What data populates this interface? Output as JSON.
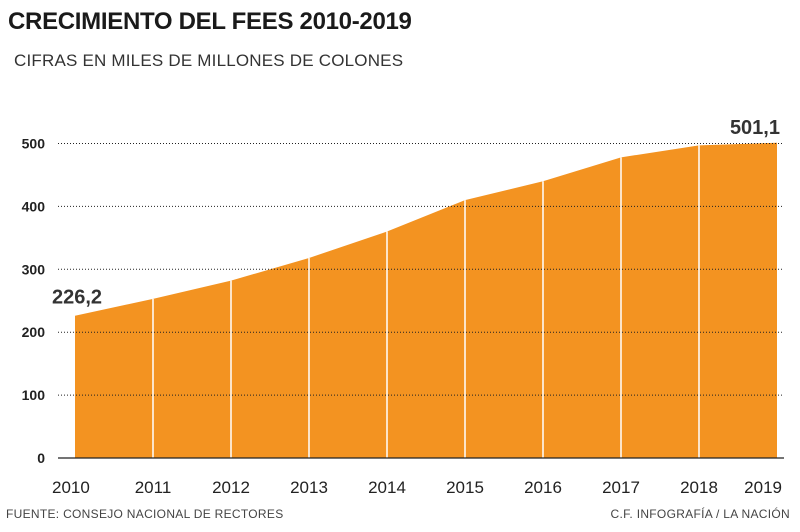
{
  "header": {
    "title": "CRECIMIENTO DEL FEES 2010-2019",
    "subtitle": "CIFRAS EN MILES DE MILLONES DE COLONES"
  },
  "footer": {
    "source": "FUENTE: CONSEJO NACIONAL DE RECTORES",
    "credit": "C.F. INFOGRAFÍA / LA NACIÓN"
  },
  "colors": {
    "area": "#f39321",
    "grid": "#222222",
    "separator": "#ffffff",
    "text": "#222222"
  },
  "chart_data": {
    "type": "area",
    "title": "CRECIMIENTO DEL FEES 2010-2019",
    "subtitle": "CIFRAS EN MILES DE MILLONES DE COLONES",
    "xlabel": "",
    "ylabel": "",
    "categories": [
      "2010",
      "2011",
      "2012",
      "2013",
      "2014",
      "2015",
      "2016",
      "2017",
      "2018",
      "2019"
    ],
    "values": [
      226.2,
      253,
      282,
      318,
      360,
      410,
      440,
      478,
      497,
      501.1
    ],
    "ylim": [
      0,
      500
    ],
    "yticks": [
      0,
      100,
      200,
      300,
      400,
      500
    ],
    "grid": true,
    "data_labels": [
      {
        "category": "2010",
        "text": "226,2"
      },
      {
        "category": "2019",
        "text": "501,1"
      }
    ]
  }
}
